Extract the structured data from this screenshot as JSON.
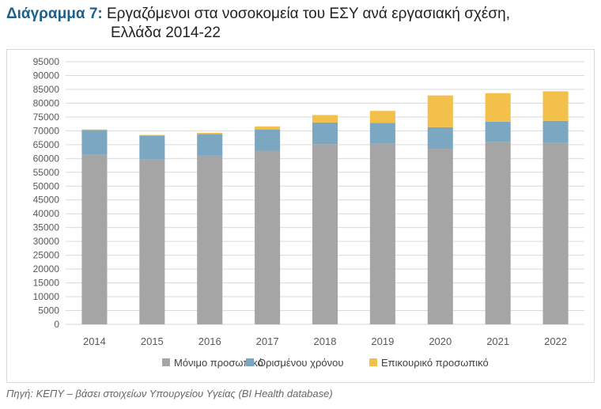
{
  "title": {
    "prefix": "Διάγραμμα 7:",
    "line1": "Εργαζόμενοι στα νοσοκομεία του ΕΣΥ ανά εργασιακή σχέση,",
    "line2": "Ελλάδα 2014-22"
  },
  "source": "Πηγή: ΚΕΠΥ – βάσει στοιχείων Υπουργείου Υγείας (BI Health database)",
  "chart_data": {
    "type": "bar",
    "stacked": true,
    "categories": [
      "2014",
      "2015",
      "2016",
      "2017",
      "2018",
      "2019",
      "2020",
      "2021",
      "2022"
    ],
    "series": [
      {
        "name": "Μόνιμο προσωπικό",
        "color": "#a5a5a5",
        "values": [
          61500,
          59700,
          61000,
          62800,
          65200,
          65300,
          63500,
          66000,
          65600
        ]
      },
      {
        "name": "Ορισμένου χρόνου",
        "color": "#7ba7c2",
        "values": [
          8800,
          8600,
          7800,
          7700,
          7800,
          7600,
          7800,
          7300,
          8000
        ]
      },
      {
        "name": "Επικουρικό προσωπικό",
        "color": "#f2c04b",
        "values": [
          200,
          200,
          500,
          1100,
          2700,
          4300,
          11500,
          10300,
          10700
        ]
      }
    ],
    "ylim": [
      0,
      95000
    ],
    "ytick_step": 5000,
    "yticks": [
      "0",
      "5000",
      "10000",
      "15000",
      "20000",
      "25000",
      "30000",
      "35000",
      "40000",
      "45000",
      "50000",
      "55000",
      "60000",
      "65000",
      "70000",
      "75000",
      "80000",
      "85000",
      "90000",
      "95000"
    ],
    "grid": true,
    "legend_position": "bottom"
  }
}
